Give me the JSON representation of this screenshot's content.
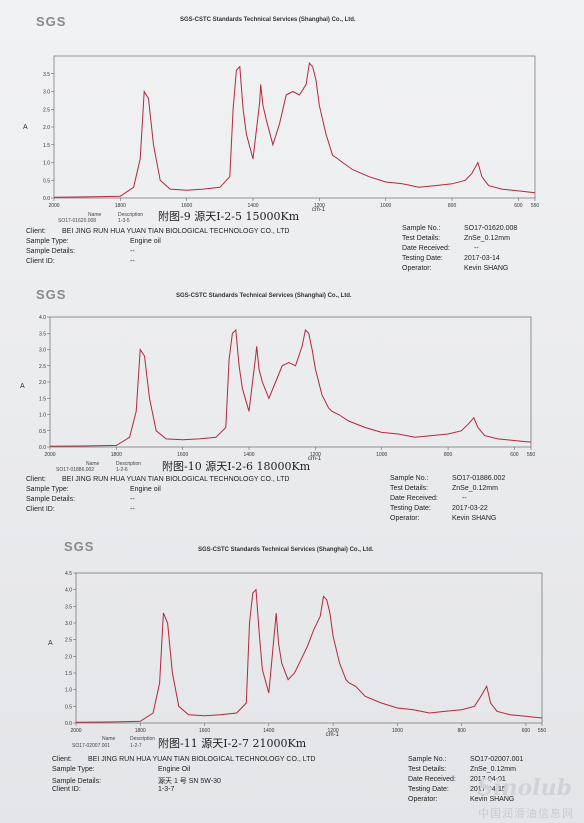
{
  "logo_text": "SGS",
  "company": "SGS-CSTC Standards Technical Services (Shanghai) Co., Ltd.",
  "axis_ylabel": "A",
  "axis_xlabel": "cm-1",
  "blocks": [
    {
      "legend_cols": [
        "Name",
        "Description"
      ],
      "legend_values": [
        "SO17-01620.008",
        "1-3-5"
      ],
      "handwritten": "附图-9 源天I-2-5 15000Km",
      "client": "BEI JING RUN HUA YUAN TIAN BIOLOGICAL TECHNOLOGY CO., LTD",
      "sample_type": "Engine oil",
      "sample_details": "--",
      "client_id": "--",
      "sample_no": "SO17-01620.008",
      "test_details": "ZnSe_0.12mm",
      "date_received": "--",
      "testing_date": "2017-03-14",
      "operator": "Kevin SHANG"
    },
    {
      "legend_cols": [
        "Name",
        "Description"
      ],
      "legend_values": [
        "SO17-01886.002",
        "1-2-6"
      ],
      "handwritten": "附图-10 源天I-2-6 18000Km",
      "client": "BEI JING RUN HUA YUAN TIAN BIOLOGICAL TECHNOLOGY CO., LTD",
      "sample_type": "Engine oil",
      "sample_details": "--",
      "client_id": "--",
      "sample_no": "SO17-01886.002",
      "test_details": "ZnSe_0.12mm",
      "date_received": "--",
      "testing_date": "2017-03-22",
      "operator": "Kevin SHANG"
    },
    {
      "legend_cols": [
        "Name",
        "Description"
      ],
      "legend_values": [
        "SO17-02007.001",
        "1-2-7"
      ],
      "handwritten": "附图-11 源天I-2-7 21000Km",
      "client": "BEI JING RUN HUA YUAN TIAN BIOLOGICAL TECHNOLOGY CO., LTD",
      "sample_type": "Engine Oil",
      "sample_details": "源天 1 号 SN 5W-30",
      "client_id": "1-3-7",
      "sample_no": "SO17-02007.001",
      "test_details": "ZnSe_0.12mm",
      "date_received": "2017-04-01",
      "testing_date": "2017-04-15",
      "operator": "Kevin SHANG"
    }
  ],
  "labels": {
    "client": "Client:",
    "sample_type": "Sample Type:",
    "sample_details": "Sample Details:",
    "client_id": "Client ID:",
    "sample_no": "Sample No.:",
    "test_details": "Test Details:",
    "date_received": "Date Received:",
    "testing_date": "Testing Date:",
    "operator": "Operator:"
  },
  "watermark": "中国润滑油信息网",
  "watermark_logo": "Sinolub",
  "chart_data": [
    {
      "type": "line",
      "xlabel": "cm-1",
      "ylabel": "A",
      "xlim": [
        2000,
        550
      ],
      "ylim": [
        0,
        4.0
      ],
      "yticks": [
        0.0,
        0.5,
        1.0,
        1.5,
        2.0,
        2.5,
        3.0,
        3.5
      ],
      "xticks": [
        2000,
        1800,
        1600,
        1400,
        1200,
        1000,
        800,
        600,
        550
      ],
      "series": [
        {
          "x": [
            2000,
            1900,
            1800,
            1760,
            1740,
            1728,
            1715,
            1700,
            1680,
            1650,
            1600,
            1550,
            1500,
            1470,
            1460,
            1450,
            1440,
            1430,
            1420,
            1400,
            1380,
            1377,
            1370,
            1360,
            1340,
            1320,
            1300,
            1280,
            1260,
            1240,
            1230,
            1220,
            1210,
            1200,
            1180,
            1160,
            1150,
            1130,
            1100,
            1050,
            1000,
            950,
            900,
            850,
            800,
            760,
            740,
            722,
            710,
            690,
            650,
            600,
            580,
            550
          ],
          "y": [
            0.02,
            0.03,
            0.05,
            0.3,
            1.1,
            3.0,
            2.8,
            1.5,
            0.5,
            0.25,
            0.22,
            0.25,
            0.3,
            0.6,
            2.5,
            3.6,
            3.7,
            2.5,
            1.8,
            1.1,
            2.7,
            3.2,
            2.6,
            2.2,
            1.5,
            2.1,
            2.9,
            3.0,
            2.9,
            3.2,
            3.8,
            3.7,
            3.3,
            2.6,
            1.8,
            1.2,
            1.14,
            1.0,
            0.8,
            0.6,
            0.45,
            0.4,
            0.3,
            0.35,
            0.4,
            0.5,
            0.7,
            1.0,
            0.6,
            0.35,
            0.25,
            0.2,
            0.18,
            0.15
          ]
        }
      ]
    },
    {
      "type": "line",
      "xlabel": "cm-1",
      "ylabel": "A",
      "xlim": [
        2000,
        550
      ],
      "ylim": [
        0,
        4.0
      ],
      "yticks": [
        0.0,
        0.5,
        1.0,
        1.5,
        2.0,
        2.5,
        3.0,
        3.5,
        4.0
      ],
      "xticks": [
        2000,
        1800,
        1600,
        1400,
        1200,
        1000,
        800,
        600,
        550
      ],
      "series": [
        {
          "x": [
            2000,
            1900,
            1800,
            1760,
            1740,
            1728,
            1715,
            1700,
            1680,
            1650,
            1600,
            1550,
            1500,
            1470,
            1460,
            1450,
            1440,
            1430,
            1420,
            1400,
            1380,
            1377,
            1370,
            1360,
            1340,
            1320,
            1300,
            1280,
            1260,
            1240,
            1230,
            1220,
            1210,
            1200,
            1180,
            1160,
            1150,
            1130,
            1100,
            1050,
            1000,
            950,
            900,
            850,
            800,
            760,
            740,
            722,
            710,
            690,
            650,
            600,
            580,
            550
          ],
          "y": [
            0.02,
            0.03,
            0.05,
            0.3,
            1.1,
            3.0,
            2.8,
            1.5,
            0.5,
            0.25,
            0.22,
            0.25,
            0.3,
            0.6,
            2.7,
            3.5,
            3.6,
            2.5,
            1.8,
            1.1,
            2.8,
            3.1,
            2.4,
            2.0,
            1.5,
            2.0,
            2.5,
            2.6,
            2.5,
            3.1,
            3.6,
            3.5,
            3.0,
            2.4,
            1.6,
            1.2,
            1.1,
            1.0,
            0.8,
            0.6,
            0.45,
            0.4,
            0.3,
            0.35,
            0.4,
            0.5,
            0.7,
            0.9,
            0.6,
            0.35,
            0.25,
            0.2,
            0.18,
            0.15
          ]
        }
      ]
    },
    {
      "type": "line",
      "xlabel": "cm-1",
      "ylabel": "A",
      "xlim": [
        2000,
        550
      ],
      "ylim": [
        0,
        4.5
      ],
      "yticks": [
        0.0,
        0.5,
        1.0,
        1.5,
        2.0,
        2.5,
        3.0,
        3.5,
        4.0,
        4.5
      ],
      "xticks": [
        2000,
        1800,
        1600,
        1400,
        1200,
        1000,
        800,
        600,
        550
      ],
      "series": [
        {
          "x": [
            2000,
            1900,
            1800,
            1760,
            1740,
            1728,
            1715,
            1700,
            1680,
            1650,
            1600,
            1550,
            1500,
            1470,
            1460,
            1450,
            1440,
            1430,
            1420,
            1400,
            1380,
            1377,
            1370,
            1360,
            1340,
            1320,
            1300,
            1280,
            1260,
            1240,
            1230,
            1220,
            1210,
            1200,
            1180,
            1160,
            1150,
            1130,
            1100,
            1050,
            1000,
            950,
            900,
            850,
            800,
            760,
            740,
            722,
            710,
            690,
            650,
            600,
            580,
            550
          ],
          "y": [
            0.02,
            0.03,
            0.05,
            0.3,
            1.2,
            3.3,
            3.0,
            1.5,
            0.5,
            0.25,
            0.22,
            0.25,
            0.3,
            0.6,
            3.0,
            3.9,
            4.0,
            2.7,
            1.6,
            0.9,
            3.0,
            3.3,
            2.4,
            1.8,
            1.3,
            1.5,
            1.9,
            2.3,
            2.8,
            3.2,
            3.8,
            3.7,
            3.3,
            2.6,
            1.8,
            1.3,
            1.2,
            1.1,
            0.8,
            0.6,
            0.45,
            0.4,
            0.3,
            0.35,
            0.4,
            0.5,
            0.8,
            1.1,
            0.6,
            0.35,
            0.25,
            0.2,
            0.18,
            0.15
          ]
        }
      ]
    }
  ]
}
